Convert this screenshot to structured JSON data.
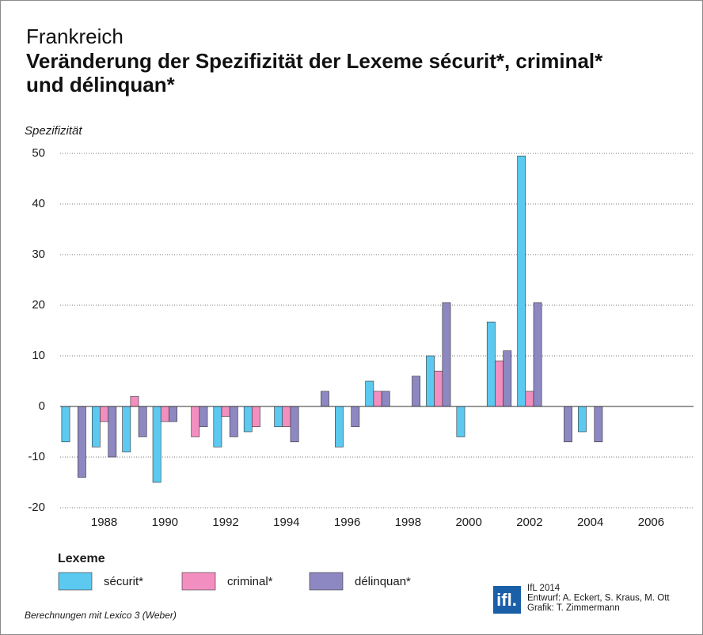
{
  "chart_data": {
    "type": "bar",
    "title": "Frankreich",
    "subtitle": "Veränderung der Spezifizität der Lexeme sécurit*, criminal* und délinquan*",
    "y_label": "Spezifizität",
    "legend_title": "Lexeme",
    "categories": [
      null,
      "1988",
      null,
      "1990",
      null,
      "1992",
      null,
      "1994",
      null,
      "1996",
      null,
      "1998",
      null,
      "2000",
      null,
      "2002",
      null,
      "2004",
      null,
      "2006",
      null
    ],
    "series": [
      {
        "name": "sécurit*",
        "color": "#5cc9f0",
        "values": [
          -7,
          -8,
          -9,
          -15,
          null,
          -8,
          -5,
          -4,
          null,
          -8,
          5,
          null,
          10,
          -6,
          16.7,
          49.5,
          null,
          -5,
          null,
          null,
          null
        ]
      },
      {
        "name": "criminal*",
        "color": "#f38fc0",
        "values": [
          null,
          -3,
          2,
          -3,
          -6,
          -2,
          -4,
          -4,
          null,
          null,
          3,
          null,
          7,
          null,
          9,
          3,
          null,
          null,
          null,
          null,
          null
        ]
      },
      {
        "name": "délinquan*",
        "color": "#8e88c2",
        "values": [
          -14,
          -10,
          -6,
          -3,
          -4,
          -6,
          null,
          -7,
          3,
          -4,
          3,
          6,
          20.5,
          null,
          11,
          20.5,
          -7,
          -7,
          null,
          null,
          null
        ]
      }
    ],
    "ylim": [
      -20,
      50
    ],
    "yticks": [
      -20,
      -10,
      0,
      10,
      20,
      30,
      40,
      50
    ],
    "grid": true,
    "footnote": "Berechnungen mit Lexico 3 (Weber)",
    "logo": "ifl.",
    "credits": [
      "IfL 2014",
      "Entwurf: A. Eckert, S. Kraus, M. Ott",
      "Grafik: T. Zimmermann"
    ]
  }
}
